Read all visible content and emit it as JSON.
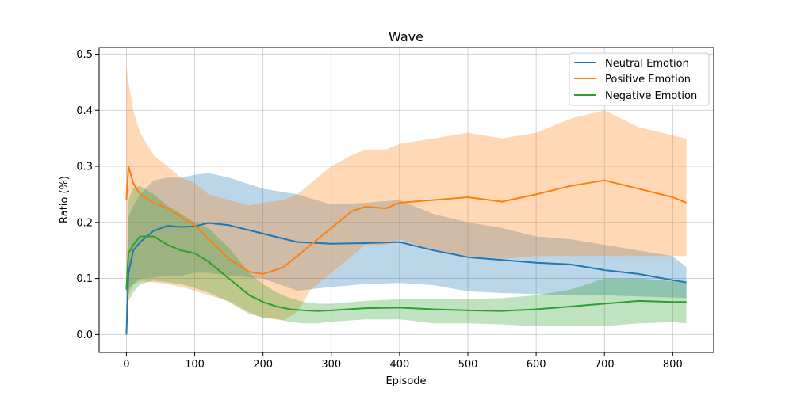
{
  "chart_data": {
    "type": "line",
    "title": "Wave",
    "xlabel": "Episode",
    "ylabel": "Ratio (%)",
    "xlim": [
      -40,
      860
    ],
    "ylim": [
      -0.032,
      0.512
    ],
    "xticks": [
      "0",
      "100",
      "200",
      "300",
      "400",
      "500",
      "600",
      "700",
      "800"
    ],
    "yticks": [
      "0.0",
      "0.1",
      "0.2",
      "0.3",
      "0.4",
      "0.5"
    ],
    "grid": true,
    "legend_position": "top-right",
    "series": [
      {
        "name": "Neutral Emotion",
        "color": "#1f77b4",
        "x": [
          0,
          3,
          10,
          20,
          40,
          60,
          80,
          100,
          120,
          150,
          200,
          250,
          300,
          350,
          400,
          450,
          500,
          550,
          600,
          650,
          700,
          750,
          800,
          820
        ],
        "values": [
          0.0,
          0.11,
          0.15,
          0.165,
          0.185,
          0.194,
          0.192,
          0.193,
          0.199,
          0.195,
          0.18,
          0.165,
          0.162,
          0.163,
          0.165,
          0.15,
          0.138,
          0.133,
          0.128,
          0.125,
          0.115,
          0.108,
          0.097,
          0.093
        ],
        "upper": [
          0.08,
          0.21,
          0.23,
          0.25,
          0.275,
          0.28,
          0.28,
          0.285,
          0.288,
          0.28,
          0.26,
          0.25,
          0.232,
          0.235,
          0.24,
          0.215,
          0.2,
          0.19,
          0.175,
          0.17,
          0.16,
          0.15,
          0.14,
          0.12
        ],
        "lower": [
          0.08,
          0.08,
          0.09,
          0.1,
          0.102,
          0.105,
          0.105,
          0.11,
          0.11,
          0.105,
          0.1,
          0.078,
          0.085,
          0.09,
          0.092,
          0.088,
          0.077,
          0.074,
          0.072,
          0.07,
          0.07,
          0.068,
          0.066,
          0.065
        ]
      },
      {
        "name": "Positive Emotion",
        "color": "#ff7f0e",
        "x": [
          0,
          3,
          10,
          20,
          40,
          60,
          80,
          100,
          120,
          150,
          180,
          200,
          230,
          250,
          270,
          300,
          330,
          350,
          380,
          400,
          450,
          500,
          550,
          600,
          650,
          700,
          750,
          800,
          820
        ],
        "values": [
          0.24,
          0.3,
          0.27,
          0.25,
          0.235,
          0.225,
          0.21,
          0.195,
          0.17,
          0.135,
          0.112,
          0.108,
          0.12,
          0.14,
          0.16,
          0.19,
          0.22,
          0.228,
          0.225,
          0.235,
          0.24,
          0.245,
          0.237,
          0.25,
          0.265,
          0.275,
          0.26,
          0.245,
          0.235
        ],
        "upper": [
          0.48,
          0.45,
          0.4,
          0.36,
          0.32,
          0.3,
          0.28,
          0.27,
          0.25,
          0.24,
          0.23,
          0.235,
          0.24,
          0.25,
          0.27,
          0.3,
          0.32,
          0.33,
          0.33,
          0.34,
          0.35,
          0.36,
          0.35,
          0.36,
          0.385,
          0.4,
          0.37,
          0.355,
          0.35
        ],
        "lower": [
          0.0,
          0.07,
          0.09,
          0.095,
          0.093,
          0.09,
          0.085,
          0.078,
          0.07,
          0.06,
          0.04,
          0.03,
          0.025,
          0.04,
          0.08,
          0.11,
          0.14,
          0.16,
          0.16,
          0.17,
          0.15,
          0.14,
          0.135,
          0.14,
          0.14,
          0.14,
          0.14,
          0.14,
          0.14
        ]
      },
      {
        "name": "Negative Emotion",
        "color": "#2ca02c",
        "x": [
          0,
          3,
          10,
          20,
          40,
          60,
          80,
          100,
          120,
          150,
          180,
          200,
          220,
          240,
          260,
          280,
          300,
          350,
          400,
          450,
          500,
          550,
          600,
          650,
          700,
          750,
          800,
          820
        ],
        "values": [
          0.08,
          0.145,
          0.16,
          0.175,
          0.175,
          0.16,
          0.15,
          0.145,
          0.13,
          0.1,
          0.07,
          0.058,
          0.05,
          0.045,
          0.043,
          0.042,
          0.043,
          0.047,
          0.048,
          0.045,
          0.043,
          0.042,
          0.045,
          0.05,
          0.055,
          0.06,
          0.058,
          0.058
        ],
        "upper": [
          0.08,
          0.24,
          0.262,
          0.265,
          0.25,
          0.23,
          0.215,
          0.2,
          0.19,
          0.155,
          0.11,
          0.09,
          0.075,
          0.065,
          0.058,
          0.055,
          0.055,
          0.06,
          0.063,
          0.063,
          0.063,
          0.065,
          0.07,
          0.08,
          0.1,
          0.1,
          0.095,
          0.093
        ],
        "lower": [
          0.08,
          0.06,
          0.075,
          0.09,
          0.096,
          0.093,
          0.09,
          0.083,
          0.075,
          0.058,
          0.037,
          0.03,
          0.028,
          0.022,
          0.02,
          0.02,
          0.023,
          0.027,
          0.027,
          0.02,
          0.02,
          0.018,
          0.015,
          0.015,
          0.015,
          0.02,
          0.022,
          0.02
        ]
      }
    ]
  }
}
